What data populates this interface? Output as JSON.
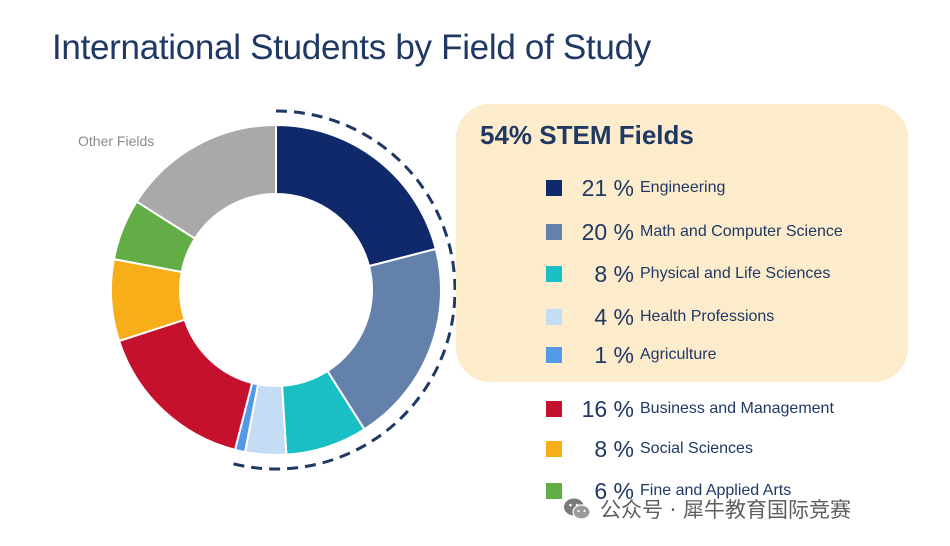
{
  "title": "International Students by Field of Study",
  "stem": {
    "title": "54% STEM Fields"
  },
  "other_label": "Other Fields",
  "watermark": {
    "dot": "·",
    "icon": "wechat-icon",
    "text": "公众号 · 犀牛教育国际竞赛"
  },
  "chart_data": {
    "type": "pie",
    "variant": "donut",
    "title": "International Students by Field of Study",
    "stem_group": [
      "Engineering",
      "Math and Computer Science",
      "Physical and Life Sciences",
      "Health Professions",
      "Agriculture"
    ],
    "slices": [
      {
        "label": "Engineering",
        "value": 21,
        "value_label": "21 %",
        "color": "#10296b"
      },
      {
        "label": "Math and Computer Science",
        "value": 20,
        "value_label": "20 %",
        "color": "#6481ab"
      },
      {
        "label": "Physical and Life Sciences",
        "value": 8,
        "value_label": "8 %",
        "color": "#19bfc4"
      },
      {
        "label": "Health Professions",
        "value": 4,
        "value_label": "4 %",
        "color": "#c5dcf5"
      },
      {
        "label": "Agriculture",
        "value": 1,
        "value_label": "1 %",
        "color": "#5498e8"
      },
      {
        "label": "Business and Management",
        "value": 16,
        "value_label": "16 %",
        "color": "#c5112e"
      },
      {
        "label": "Social Sciences",
        "value": 8,
        "value_label": "8 %",
        "color": "#f7ae19"
      },
      {
        "label": "Fine and Applied Arts",
        "value": 6,
        "value_label": "6 %",
        "color": "#62ad45"
      },
      {
        "label": "Other Fields",
        "value": 16,
        "color": "#a9a9a9"
      }
    ]
  }
}
